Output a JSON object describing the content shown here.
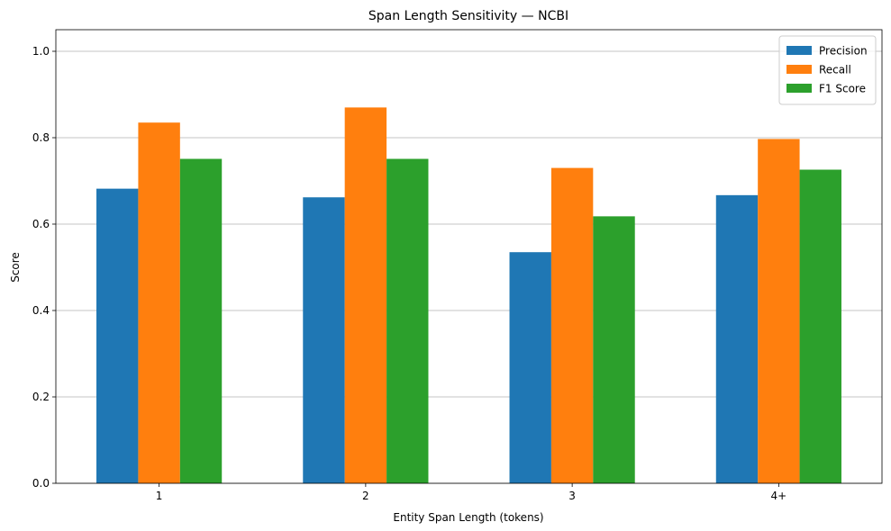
{
  "chart_data": {
    "type": "bar",
    "title": "Span Length Sensitivity — NCBI",
    "xlabel": "Entity Span Length (tokens)",
    "ylabel": "Score",
    "categories": [
      "1",
      "2",
      "3",
      "4+"
    ],
    "series": [
      {
        "name": "Precision",
        "color": "#1f77b4",
        "values": [
          0.682,
          0.662,
          0.535,
          0.667
        ]
      },
      {
        "name": "Recall",
        "color": "#ff7f0e",
        "values": [
          0.835,
          0.87,
          0.73,
          0.797
        ]
      },
      {
        "name": "F1 Score",
        "color": "#2ca02c",
        "values": [
          0.751,
          0.751,
          0.618,
          0.726
        ]
      }
    ],
    "ylim": [
      0,
      1.05
    ],
    "yticks": [
      "0.0",
      "0.2",
      "0.4",
      "0.6",
      "0.8",
      "1.0"
    ],
    "grid": "y-axis major",
    "legend_position": "top-right"
  }
}
